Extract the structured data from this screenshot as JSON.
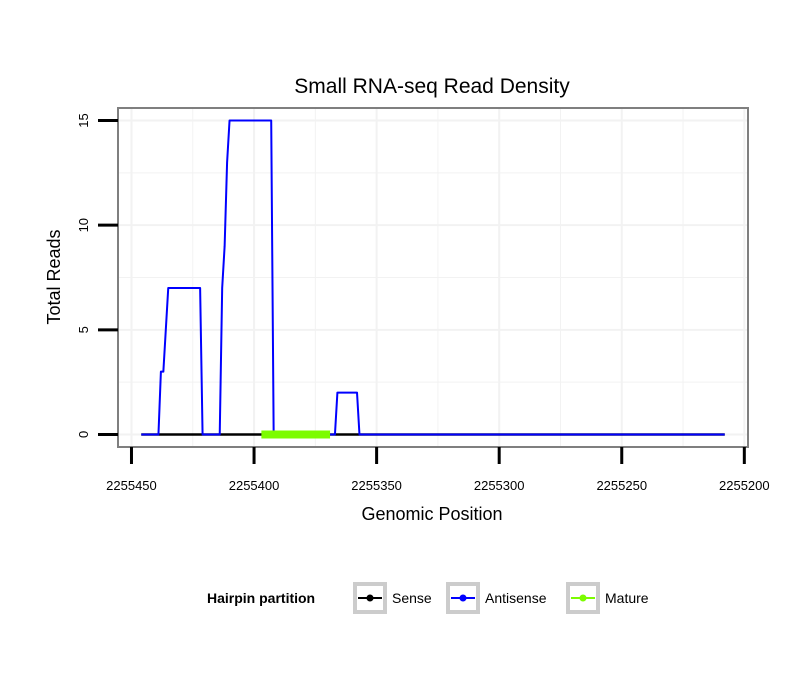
{
  "chart_data": {
    "type": "line",
    "title": "Small RNA-seq Read Density",
    "xlabel": "Genomic Position",
    "ylabel": "Total Reads",
    "x_reversed": true,
    "xlim": [
      2255455.5,
      2255198.5
    ],
    "ylim": [
      -0.6,
      15.6
    ],
    "x_ticks": [
      2255450,
      2255400,
      2255350,
      2255300,
      2255250,
      2255200
    ],
    "x_tick_labels": [
      "2255450",
      "2255400",
      "2255350",
      "2255300",
      "2255250",
      "2255200"
    ],
    "y_ticks": [
      0,
      5,
      10,
      15
    ],
    "y_tick_labels": [
      "0",
      "5",
      "10",
      "15"
    ],
    "grid": true,
    "legend_position": "bottom",
    "legend_title": "Hairpin partition",
    "series": [
      {
        "name": "Sense",
        "color": "#000000",
        "x": [
          2255446,
          2255208
        ],
        "y": [
          0,
          0
        ]
      },
      {
        "name": "Antisense",
        "color": "#0000ff",
        "x": [
          2255446,
          2255439,
          2255438,
          2255437,
          2255436,
          2255435,
          2255434,
          2255423,
          2255422,
          2255421,
          2255414,
          2255413,
          2255412,
          2255411,
          2255410,
          2255409,
          2255408,
          2255394,
          2255393,
          2255392,
          2255367,
          2255366,
          2255365,
          2255358,
          2255357,
          2255208
        ],
        "y": [
          0,
          0,
          3,
          3,
          5,
          7,
          7,
          7,
          7,
          0,
          0,
          7,
          9,
          13,
          15,
          15,
          15,
          15,
          15,
          0,
          0,
          2,
          2,
          2,
          0,
          0
        ]
      },
      {
        "name": "Mature",
        "color": "#7cfc00",
        "x": [
          2255397,
          2255369
        ],
        "y": [
          0,
          0
        ]
      }
    ]
  }
}
